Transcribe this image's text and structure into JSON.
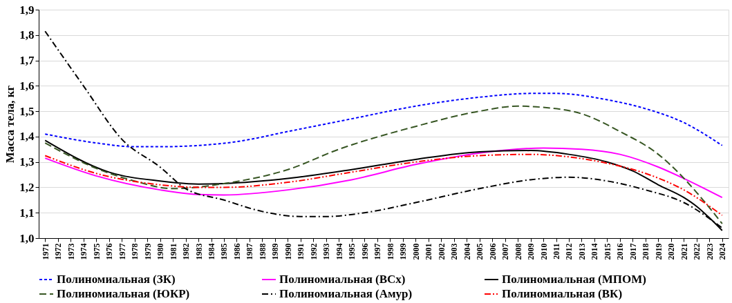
{
  "chart_data": {
    "type": "line",
    "ylabel": "Масса тела, кг",
    "xlim": [
      1970.5,
      2024.5
    ],
    "xticks": [
      1971,
      1972,
      1973,
      1974,
      1975,
      1976,
      1977,
      1978,
      1979,
      1980,
      1981,
      1982,
      1983,
      1984,
      1985,
      1986,
      1987,
      1988,
      1989,
      1990,
      1991,
      1992,
      1993,
      1994,
      1995,
      1996,
      1997,
      1998,
      1999,
      2000,
      2001,
      2002,
      2003,
      2004,
      2005,
      2006,
      2007,
      2008,
      2009,
      2010,
      2011,
      2012,
      2013,
      2014,
      2015,
      2016,
      2017,
      2018,
      2019,
      2020,
      2021,
      2022,
      2023,
      2024
    ],
    "ylim": [
      1.0,
      1.9
    ],
    "yticks": [
      {
        "value": 1.0,
        "label": "1,0"
      },
      {
        "value": 1.1,
        "label": "1,1"
      },
      {
        "value": 1.2,
        "label": "1,2"
      },
      {
        "value": 1.3,
        "label": "1,3"
      },
      {
        "value": 1.4,
        "label": "1,4"
      },
      {
        "value": 1.5,
        "label": "1,5"
      },
      {
        "value": 1.6,
        "label": "1,6"
      },
      {
        "value": 1.7,
        "label": "1,7"
      },
      {
        "value": 1.8,
        "label": "1,8"
      },
      {
        "value": 1.9,
        "label": "1,9"
      }
    ],
    "grid": "y",
    "legend": "bottom",
    "marker": "none",
    "series": [
      {
        "name": "Полиномиальная (ЗК)",
        "color": "#0000ff",
        "line_style": "dotted",
        "x": [
          1971,
          1975,
          1978,
          1980,
          1983,
          1986,
          1990,
          1995,
          2000,
          2005,
          2009,
          2011,
          2015,
          2018,
          2021,
          2024
        ],
        "values": [
          1.41,
          1.375,
          1.36,
          1.36,
          1.365,
          1.38,
          1.42,
          1.47,
          1.52,
          1.555,
          1.57,
          1.57,
          1.545,
          1.51,
          1.455,
          1.365
        ]
      },
      {
        "name": "Полиномиальная (ВСх)",
        "color": "#ff00ff",
        "line_style": "solid",
        "x": [
          1971,
          1975,
          1980,
          1983,
          1985,
          1990,
          1995,
          2000,
          2005,
          2010,
          2013,
          2016,
          2019,
          2021,
          2024
        ],
        "values": [
          1.315,
          1.245,
          1.19,
          1.172,
          1.17,
          1.19,
          1.23,
          1.29,
          1.335,
          1.355,
          1.35,
          1.33,
          1.28,
          1.235,
          1.16
        ]
      },
      {
        "name": "Полиномиальная (МПОМ)",
        "color": "#000000",
        "line_style": "solid",
        "x": [
          1971,
          1976,
          1980,
          1983,
          1985,
          1990,
          1995,
          2000,
          2005,
          2009,
          2012,
          2015,
          2017,
          2019,
          2021,
          2022,
          2023,
          2024
        ],
        "values": [
          1.385,
          1.26,
          1.225,
          1.213,
          1.215,
          1.235,
          1.27,
          1.31,
          1.34,
          1.345,
          1.33,
          1.3,
          1.265,
          1.21,
          1.16,
          1.125,
          1.08,
          1.03
        ]
      },
      {
        "name": "Полиномиальная (ЮКР)",
        "color": "#375623",
        "line_style": "dashed",
        "x": [
          1971,
          1975,
          1978,
          1981,
          1985,
          1990,
          1994,
          2000,
          2005,
          2008,
          2010,
          2013,
          2016,
          2019,
          2021,
          2022,
          2023,
          2024
        ],
        "values": [
          1.375,
          1.275,
          1.225,
          1.195,
          1.215,
          1.27,
          1.35,
          1.44,
          1.5,
          1.52,
          1.515,
          1.49,
          1.42,
          1.33,
          1.236,
          1.18,
          1.12,
          1.057
        ]
      },
      {
        "name": "Полиномиальная (Амур)",
        "color": "#000000",
        "line_style": "dashdot",
        "x": [
          1971,
          1974,
          1977,
          1980,
          1982,
          1985,
          1988,
          1991,
          1993,
          1996,
          2000,
          2005,
          2009,
          2012,
          2015,
          2018,
          2021,
          2024
        ],
        "values": [
          1.815,
          1.6,
          1.39,
          1.28,
          1.195,
          1.15,
          1.105,
          1.085,
          1.085,
          1.1,
          1.14,
          1.195,
          1.23,
          1.24,
          1.225,
          1.19,
          1.14,
          1.04
        ]
      },
      {
        "name": "Полиномиальная (ВК)",
        "color": "#ff0000",
        "line_style": "dashdotdot",
        "x": [
          1971,
          1975,
          1980,
          1983,
          1985,
          1990,
          1995,
          2000,
          2005,
          2009,
          2012,
          2015,
          2018,
          2021,
          2024
        ],
        "values": [
          1.325,
          1.255,
          1.21,
          1.2,
          1.2,
          1.22,
          1.26,
          1.3,
          1.325,
          1.33,
          1.32,
          1.295,
          1.255,
          1.19,
          1.09
        ]
      }
    ]
  }
}
